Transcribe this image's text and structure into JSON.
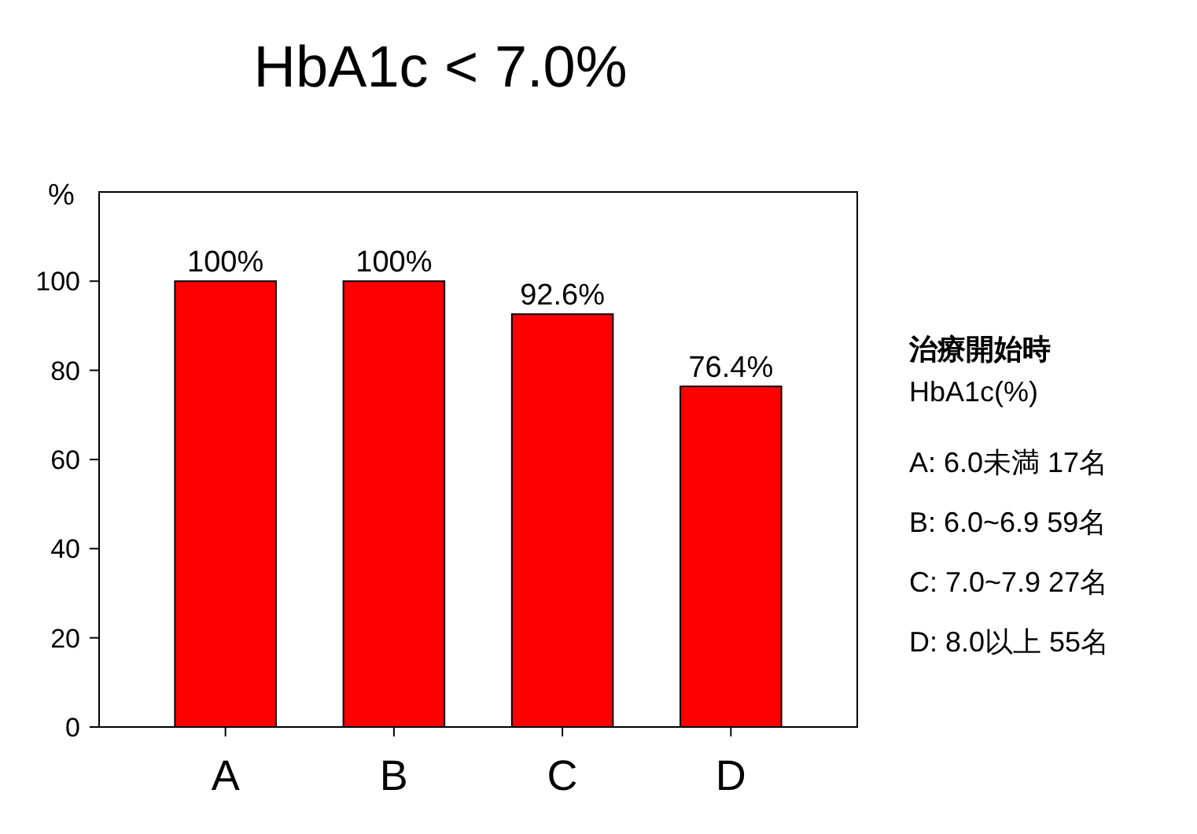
{
  "chart_data": {
    "type": "bar",
    "title": "HbA1c < 7.0%",
    "ylabel": "%",
    "categories": [
      "A",
      "B",
      "C",
      "D"
    ],
    "values": [
      100,
      100,
      92.6,
      76.4
    ],
    "value_labels": [
      "100%",
      "100%",
      "92.6%",
      "76.4%"
    ],
    "color": "#ff0000",
    "ylim": [
      0,
      120
    ],
    "yticks": [
      0,
      20,
      40,
      60,
      80,
      100
    ],
    "grid": false,
    "annotations": [
      "治療開始時",
      "HbA1c(%)",
      "A: 6.0未満 17名",
      "B: 6.0~6.9 59名",
      "C: 7.0~7.9 27名",
      "D: 8.0以上 55名"
    ]
  }
}
